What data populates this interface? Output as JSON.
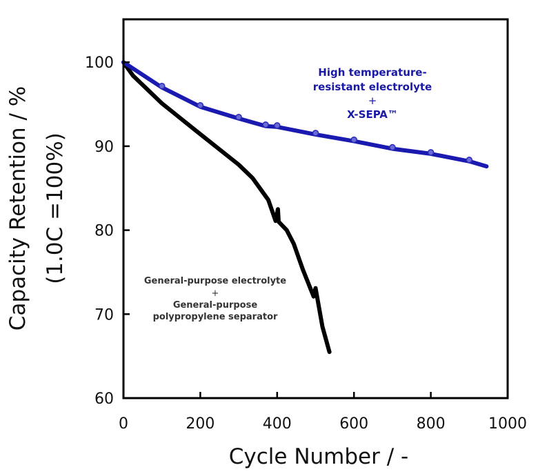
{
  "chart_data": {
    "type": "line",
    "title": "",
    "xlabel": "Cycle Number / -",
    "ylabel": [
      "Capacity Retention / %",
      "(1.0C =100%)"
    ],
    "xlim": [
      0,
      1000
    ],
    "ylim": [
      60,
      105
    ],
    "xticks": [
      "0",
      "200",
      "400",
      "600",
      "800",
      "1000"
    ],
    "yticks": [
      "60",
      "70",
      "80",
      "90",
      "100"
    ],
    "grid": false,
    "series": [
      {
        "color": "#1a1ab0",
        "markers": true,
        "label_lines": [
          "High temperature-",
          "resistant electrolyte",
          "+",
          "X-SEPA™"
        ],
        "x": [
          0,
          100,
          200,
          300,
          370,
          400,
          500,
          600,
          700,
          800,
          900,
          945
        ],
        "y": [
          100,
          97.0,
          94.7,
          93.3,
          92.4,
          92.3,
          91.4,
          90.6,
          89.7,
          89.1,
          88.2,
          87.6
        ]
      },
      {
        "color": "#000000",
        "markers": false,
        "label_lines": [
          "General-purpose electrolyte",
          "+",
          "General-purpose",
          "polypropylene separator"
        ],
        "x": [
          0,
          25,
          100,
          190,
          300,
          336,
          377,
          396,
          402,
          404,
          425,
          443,
          467,
          495,
          500,
          505,
          518,
          536
        ],
        "y": [
          100,
          98.4,
          95.1,
          91.8,
          87.8,
          86.2,
          83.6,
          81.1,
          82.5,
          81.0,
          80.0,
          78.4,
          75.3,
          72.1,
          73.1,
          71.8,
          68.5,
          65.5
        ]
      }
    ]
  }
}
